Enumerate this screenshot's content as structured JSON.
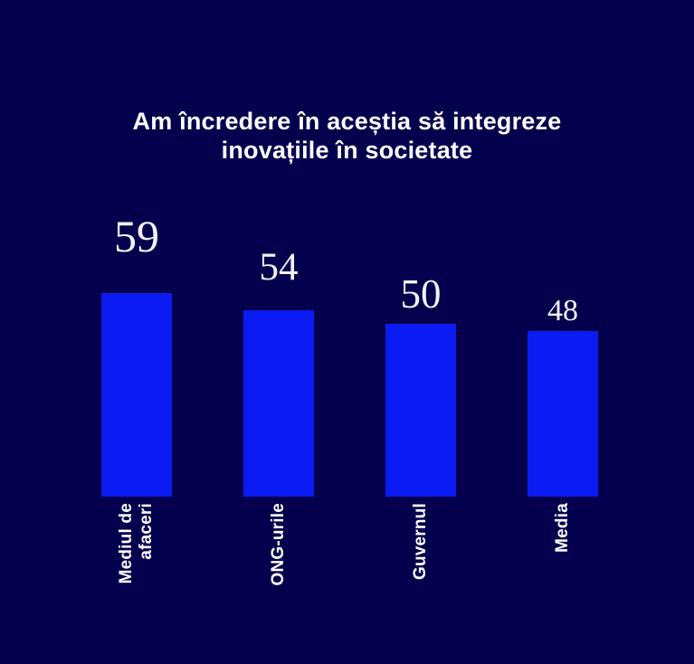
{
  "title": "Am încredere în aceștia să integreze inovațiile în societate",
  "colors": {
    "background": "#05004e",
    "bar": "#0a1bf3",
    "title_text": "#ffffff",
    "value_label_text": "#f2f1f7",
    "category_label_text": "#ffffff"
  },
  "chart_data": {
    "type": "bar",
    "title": "Am încredere în aceștia să integreze inovațiile în societate",
    "categories": [
      "Mediul de afaceri",
      "ONG-urile",
      "Guvernul",
      "Media"
    ],
    "values": [
      59,
      54,
      50,
      48
    ],
    "xlabel": "",
    "ylabel": "",
    "ylim": [
      0,
      65
    ],
    "grid": false,
    "legend": false,
    "axes_visible": false,
    "orientation": "vertical",
    "value_labels_visible": true,
    "category_label_rotation": -90
  }
}
